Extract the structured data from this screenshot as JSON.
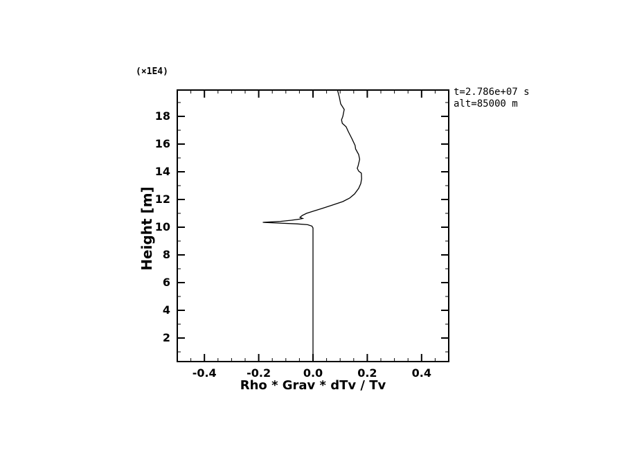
{
  "window": {
    "background_color": "#ffffff"
  },
  "chart_data": {
    "type": "line",
    "title": "",
    "xlabel": "Rho * Grav * dTv / Tv",
    "ylabel": "Height [m]",
    "y_axis_multiplier": "(×1E4)",
    "annotations": [
      "t=2.786e+07 s",
      "alt=85000 m"
    ],
    "xlim": [
      -0.5,
      0.5
    ],
    "ylim": [
      0.3,
      19.9
    ],
    "x_major_ticks": [
      -0.4,
      -0.2,
      0.0,
      0.2,
      0.4
    ],
    "x_tick_labels": [
      "-0.4",
      "-0.2",
      "0.0",
      "0.2",
      "0.4"
    ],
    "x_minor_tick_step": 0.05,
    "y_major_ticks": [
      2,
      4,
      6,
      8,
      10,
      12,
      14,
      16,
      18
    ],
    "y_tick_labels": [
      "2",
      "4",
      "6",
      "8",
      "10",
      "12",
      "14",
      "16",
      "18"
    ],
    "y_minor_tick_step": 1,
    "grid": false,
    "legend": null,
    "ticks_direction": "in",
    "colors": {
      "curve": "#000000",
      "frame": "#000000",
      "text": "#000000",
      "background": "#ffffff"
    },
    "series": [
      {
        "name": "rho-grav-dTv-over-Tv-profile",
        "points": [
          [
            0.0,
            0.3
          ],
          [
            0.0,
            9.95
          ],
          [
            -0.004,
            10.08
          ],
          [
            -0.02,
            10.18
          ],
          [
            -0.06,
            10.24
          ],
          [
            -0.13,
            10.3
          ],
          [
            -0.185,
            10.35
          ],
          [
            -0.12,
            10.42
          ],
          [
            -0.08,
            10.5
          ],
          [
            -0.05,
            10.58
          ],
          [
            -0.038,
            10.63
          ],
          [
            -0.048,
            10.71
          ],
          [
            -0.04,
            10.84
          ],
          [
            -0.024,
            11.0
          ],
          [
            0.0,
            11.15
          ],
          [
            0.033,
            11.35
          ],
          [
            0.072,
            11.6
          ],
          [
            0.11,
            11.85
          ],
          [
            0.135,
            12.1
          ],
          [
            0.153,
            12.4
          ],
          [
            0.168,
            12.8
          ],
          [
            0.176,
            13.15
          ],
          [
            0.179,
            13.5
          ],
          [
            0.178,
            13.9
          ],
          [
            0.168,
            14.05
          ],
          [
            0.163,
            14.25
          ],
          [
            0.166,
            14.42
          ],
          [
            0.172,
            14.9
          ],
          [
            0.168,
            15.25
          ],
          [
            0.157,
            15.65
          ],
          [
            0.155,
            15.9
          ],
          [
            0.143,
            16.4
          ],
          [
            0.13,
            16.9
          ],
          [
            0.122,
            17.25
          ],
          [
            0.108,
            17.5
          ],
          [
            0.105,
            17.75
          ],
          [
            0.11,
            18.0
          ],
          [
            0.115,
            18.5
          ],
          [
            0.102,
            18.9
          ],
          [
            0.097,
            19.4
          ],
          [
            0.09,
            19.9
          ]
        ]
      }
    ]
  }
}
